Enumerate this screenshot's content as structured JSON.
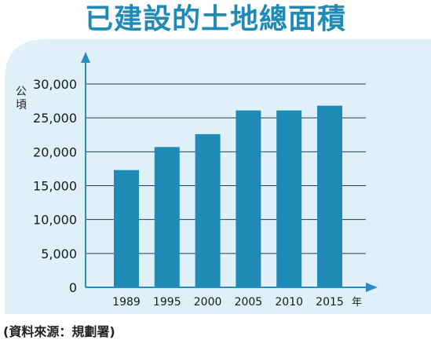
{
  "title": "已建設的土地總面積",
  "source": "(資料來源：規劃署)",
  "chart_data": {
    "type": "bar",
    "title": "已建設的土地總面積",
    "ylabel": "公頃",
    "xlabel": "年",
    "categories": [
      "1989",
      "1995",
      "2000",
      "2005",
      "2010",
      "2015"
    ],
    "values": [
      17300,
      20700,
      22600,
      26100,
      26100,
      26800
    ],
    "ylim": [
      0,
      30000
    ],
    "yticks": [
      "0",
      "5,000",
      "10,000",
      "15,000",
      "20,000",
      "25,000",
      "30,000"
    ],
    "ytick_values": [
      0,
      5000,
      10000,
      15000,
      20000,
      25000,
      30000
    ],
    "grid": true,
    "legend": "none",
    "colors": {
      "bar": "#1e8ab5",
      "panel": "#dff0f8",
      "axis": "#2a8cc0",
      "grid": "#1a3e5c",
      "title": "#1e8ab5"
    }
  }
}
